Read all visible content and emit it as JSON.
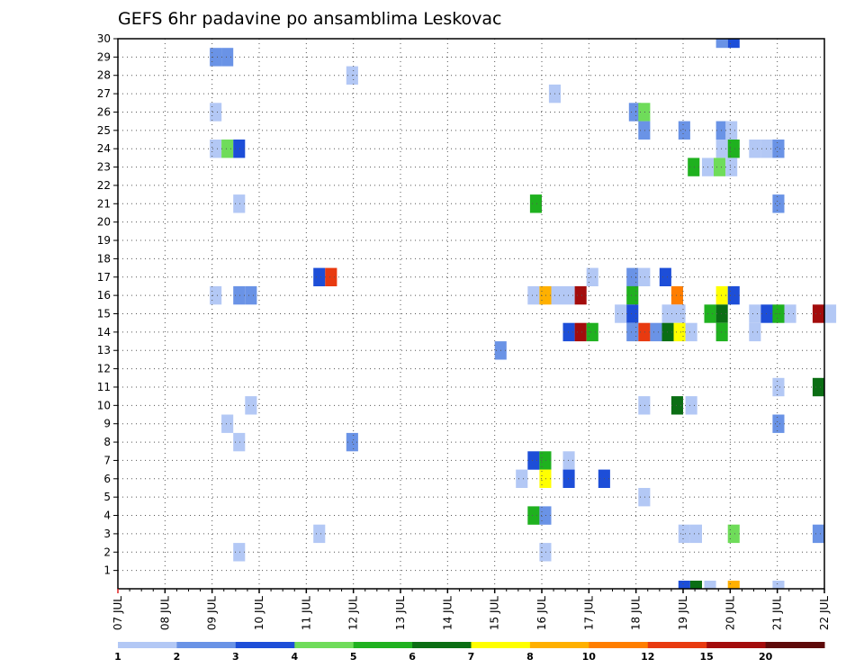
{
  "chart_data": {
    "type": "heatmap",
    "title": "GEFS 6hr padavine po ansamblima Leskovac",
    "xlabel": "",
    "ylabel": "",
    "x_tick_labels": [
      "07 JUL",
      "08 JUL",
      "09 JUL",
      "10 JUL",
      "11 JUL",
      "12 JUL",
      "13 JUL",
      "14 JUL",
      "15 JUL",
      "16 JUL",
      "17 JUL",
      "18 JUL",
      "19 JUL",
      "20 JUL",
      "21 JUL",
      "22 JUL"
    ],
    "x_range_days": [
      0,
      15
    ],
    "time_step_days": 0.25,
    "y_range": [
      0,
      30
    ],
    "y_ticks": [
      1,
      2,
      3,
      4,
      5,
      6,
      7,
      8,
      9,
      10,
      11,
      12,
      13,
      14,
      15,
      16,
      17,
      18,
      19,
      20,
      21,
      22,
      23,
      24,
      25,
      26,
      27,
      28,
      29,
      30
    ],
    "grid": true,
    "colorbar": {
      "labels": [
        "1",
        "2",
        "3",
        "4",
        "5",
        "6",
        "7",
        "8",
        "10",
        "12",
        "15",
        "20"
      ],
      "colors": [
        "#b3c8f5",
        "#6a93e6",
        "#1d4ed8",
        "#6fdc5a",
        "#1fb11f",
        "#0b6e14",
        "#ffff00",
        "#ffb000",
        "#ff7e00",
        "#e83a10",
        "#a30c0c",
        "#5e0a0a"
      ]
    },
    "cells": [
      {
        "day": 1.95,
        "member": 29,
        "level": 1
      },
      {
        "day": 2.2,
        "member": 29,
        "level": 1
      },
      {
        "day": 4.85,
        "member": 28,
        "level": 0
      },
      {
        "day": 9.15,
        "member": 27,
        "level": 0
      },
      {
        "day": 1.95,
        "member": 26,
        "level": 0
      },
      {
        "day": 10.85,
        "member": 26,
        "level": 1
      },
      {
        "day": 11.05,
        "member": 26,
        "level": 3
      },
      {
        "day": 11.05,
        "member": 25,
        "level": 1
      },
      {
        "day": 11.9,
        "member": 25,
        "level": 1
      },
      {
        "day": 12.7,
        "member": 25,
        "level": 1
      },
      {
        "day": 12.9,
        "member": 25,
        "level": 0
      },
      {
        "day": 1.95,
        "member": 24,
        "level": 0
      },
      {
        "day": 2.2,
        "member": 24,
        "level": 3
      },
      {
        "day": 2.45,
        "member": 24,
        "level": 2
      },
      {
        "day": 12.7,
        "member": 24,
        "level": 0
      },
      {
        "day": 12.95,
        "member": 24,
        "level": 4
      },
      {
        "day": 13.4,
        "member": 24,
        "level": 0
      },
      {
        "day": 13.65,
        "member": 24,
        "level": 0
      },
      {
        "day": 13.9,
        "member": 24,
        "level": 1
      },
      {
        "day": 12.1,
        "member": 23,
        "level": 4
      },
      {
        "day": 12.4,
        "member": 23,
        "level": 0
      },
      {
        "day": 12.65,
        "member": 23,
        "level": 3
      },
      {
        "day": 12.9,
        "member": 23,
        "level": 0
      },
      {
        "day": 2.45,
        "member": 21,
        "level": 0
      },
      {
        "day": 8.75,
        "member": 21,
        "level": 4
      },
      {
        "day": 13.9,
        "member": 21,
        "level": 1
      },
      {
        "day": 4.15,
        "member": 17,
        "level": 2
      },
      {
        "day": 4.4,
        "member": 17,
        "level": 9
      },
      {
        "day": 9.95,
        "member": 17,
        "level": 0
      },
      {
        "day": 10.8,
        "member": 17,
        "level": 1
      },
      {
        "day": 11.05,
        "member": 17,
        "level": 0
      },
      {
        "day": 11.5,
        "member": 17,
        "level": 2
      },
      {
        "day": 1.95,
        "member": 16,
        "level": 0
      },
      {
        "day": 2.45,
        "member": 16,
        "level": 1
      },
      {
        "day": 2.7,
        "member": 16,
        "level": 1
      },
      {
        "day": 8.7,
        "member": 16,
        "level": 0
      },
      {
        "day": 8.95,
        "member": 16,
        "level": 7
      },
      {
        "day": 9.2,
        "member": 16,
        "level": 0
      },
      {
        "day": 9.45,
        "member": 16,
        "level": 0
      },
      {
        "day": 9.7,
        "member": 16,
        "level": 10
      },
      {
        "day": 10.8,
        "member": 16,
        "level": 4
      },
      {
        "day": 11.75,
        "member": 16,
        "level": 8
      },
      {
        "day": 12.7,
        "member": 16,
        "level": 6
      },
      {
        "day": 12.95,
        "member": 16,
        "level": 2
      },
      {
        "day": 10.55,
        "member": 15,
        "level": 0
      },
      {
        "day": 10.8,
        "member": 15,
        "level": 2
      },
      {
        "day": 11.55,
        "member": 15,
        "level": 0
      },
      {
        "day": 11.8,
        "member": 15,
        "level": 0
      },
      {
        "day": 12.45,
        "member": 15,
        "level": 4
      },
      {
        "day": 12.7,
        "member": 15,
        "level": 5
      },
      {
        "day": 13.4,
        "member": 15,
        "level": 0
      },
      {
        "day": 13.65,
        "member": 15,
        "level": 2
      },
      {
        "day": 13.9,
        "member": 15,
        "level": 4
      },
      {
        "day": 14.15,
        "member": 15,
        "level": 0
      },
      {
        "day": 14.75,
        "member": 15,
        "level": 10
      },
      {
        "day": 15.0,
        "member": 15,
        "level": 0
      },
      {
        "day": 9.45,
        "member": 14,
        "level": 2
      },
      {
        "day": 9.7,
        "member": 14,
        "level": 10
      },
      {
        "day": 9.95,
        "member": 14,
        "level": 4
      },
      {
        "day": 10.8,
        "member": 14,
        "level": 1
      },
      {
        "day": 11.05,
        "member": 14,
        "level": 9
      },
      {
        "day": 11.3,
        "member": 14,
        "level": 1
      },
      {
        "day": 11.55,
        "member": 14,
        "level": 5
      },
      {
        "day": 11.8,
        "member": 14,
        "level": 6
      },
      {
        "day": 12.05,
        "member": 14,
        "level": 0
      },
      {
        "day": 12.7,
        "member": 14,
        "level": 4
      },
      {
        "day": 13.4,
        "member": 14,
        "level": 0
      },
      {
        "day": 8.0,
        "member": 13,
        "level": 1
      },
      {
        "day": 14.75,
        "member": 11,
        "level": 5
      },
      {
        "day": 13.9,
        "member": 11,
        "level": 0
      },
      {
        "day": 2.7,
        "member": 10,
        "level": 0
      },
      {
        "day": 11.05,
        "member": 10,
        "level": 0
      },
      {
        "day": 11.75,
        "member": 10,
        "level": 5
      },
      {
        "day": 12.05,
        "member": 10,
        "level": 0
      },
      {
        "day": 2.2,
        "member": 9,
        "level": 0
      },
      {
        "day": 13.9,
        "member": 9,
        "level": 1
      },
      {
        "day": 2.45,
        "member": 8,
        "level": 0
      },
      {
        "day": 4.85,
        "member": 8,
        "level": 1
      },
      {
        "day": 8.7,
        "member": 7,
        "level": 2
      },
      {
        "day": 8.95,
        "member": 7,
        "level": 4
      },
      {
        "day": 9.45,
        "member": 7,
        "level": 0
      },
      {
        "day": 8.45,
        "member": 6,
        "level": 0
      },
      {
        "day": 8.95,
        "member": 6,
        "level": 6
      },
      {
        "day": 9.45,
        "member": 6,
        "level": 2
      },
      {
        "day": 10.2,
        "member": 6,
        "level": 2
      },
      {
        "day": 11.05,
        "member": 5,
        "level": 0
      },
      {
        "day": 8.7,
        "member": 4,
        "level": 4
      },
      {
        "day": 8.95,
        "member": 4,
        "level": 1
      },
      {
        "day": 4.15,
        "member": 3,
        "level": 0
      },
      {
        "day": 11.9,
        "member": 3,
        "level": 0
      },
      {
        "day": 12.15,
        "member": 3,
        "level": 0
      },
      {
        "day": 12.95,
        "member": 3,
        "level": 3
      },
      {
        "day": 14.75,
        "member": 3,
        "level": 1
      },
      {
        "day": 2.45,
        "member": 2,
        "level": 0
      },
      {
        "day": 8.95,
        "member": 2,
        "level": 0
      },
      {
        "day": 12.7,
        "member": 30,
        "level": 1
      },
      {
        "day": 12.95,
        "member": 30,
        "level": 2
      },
      {
        "day": 11.9,
        "member": 0,
        "level": 2
      },
      {
        "day": 12.15,
        "member": 0,
        "level": 5
      },
      {
        "day": 12.45,
        "member": 0,
        "level": 0
      },
      {
        "day": 12.95,
        "member": 0,
        "level": 7
      },
      {
        "day": 13.9,
        "member": 0,
        "level": 0
      }
    ]
  }
}
